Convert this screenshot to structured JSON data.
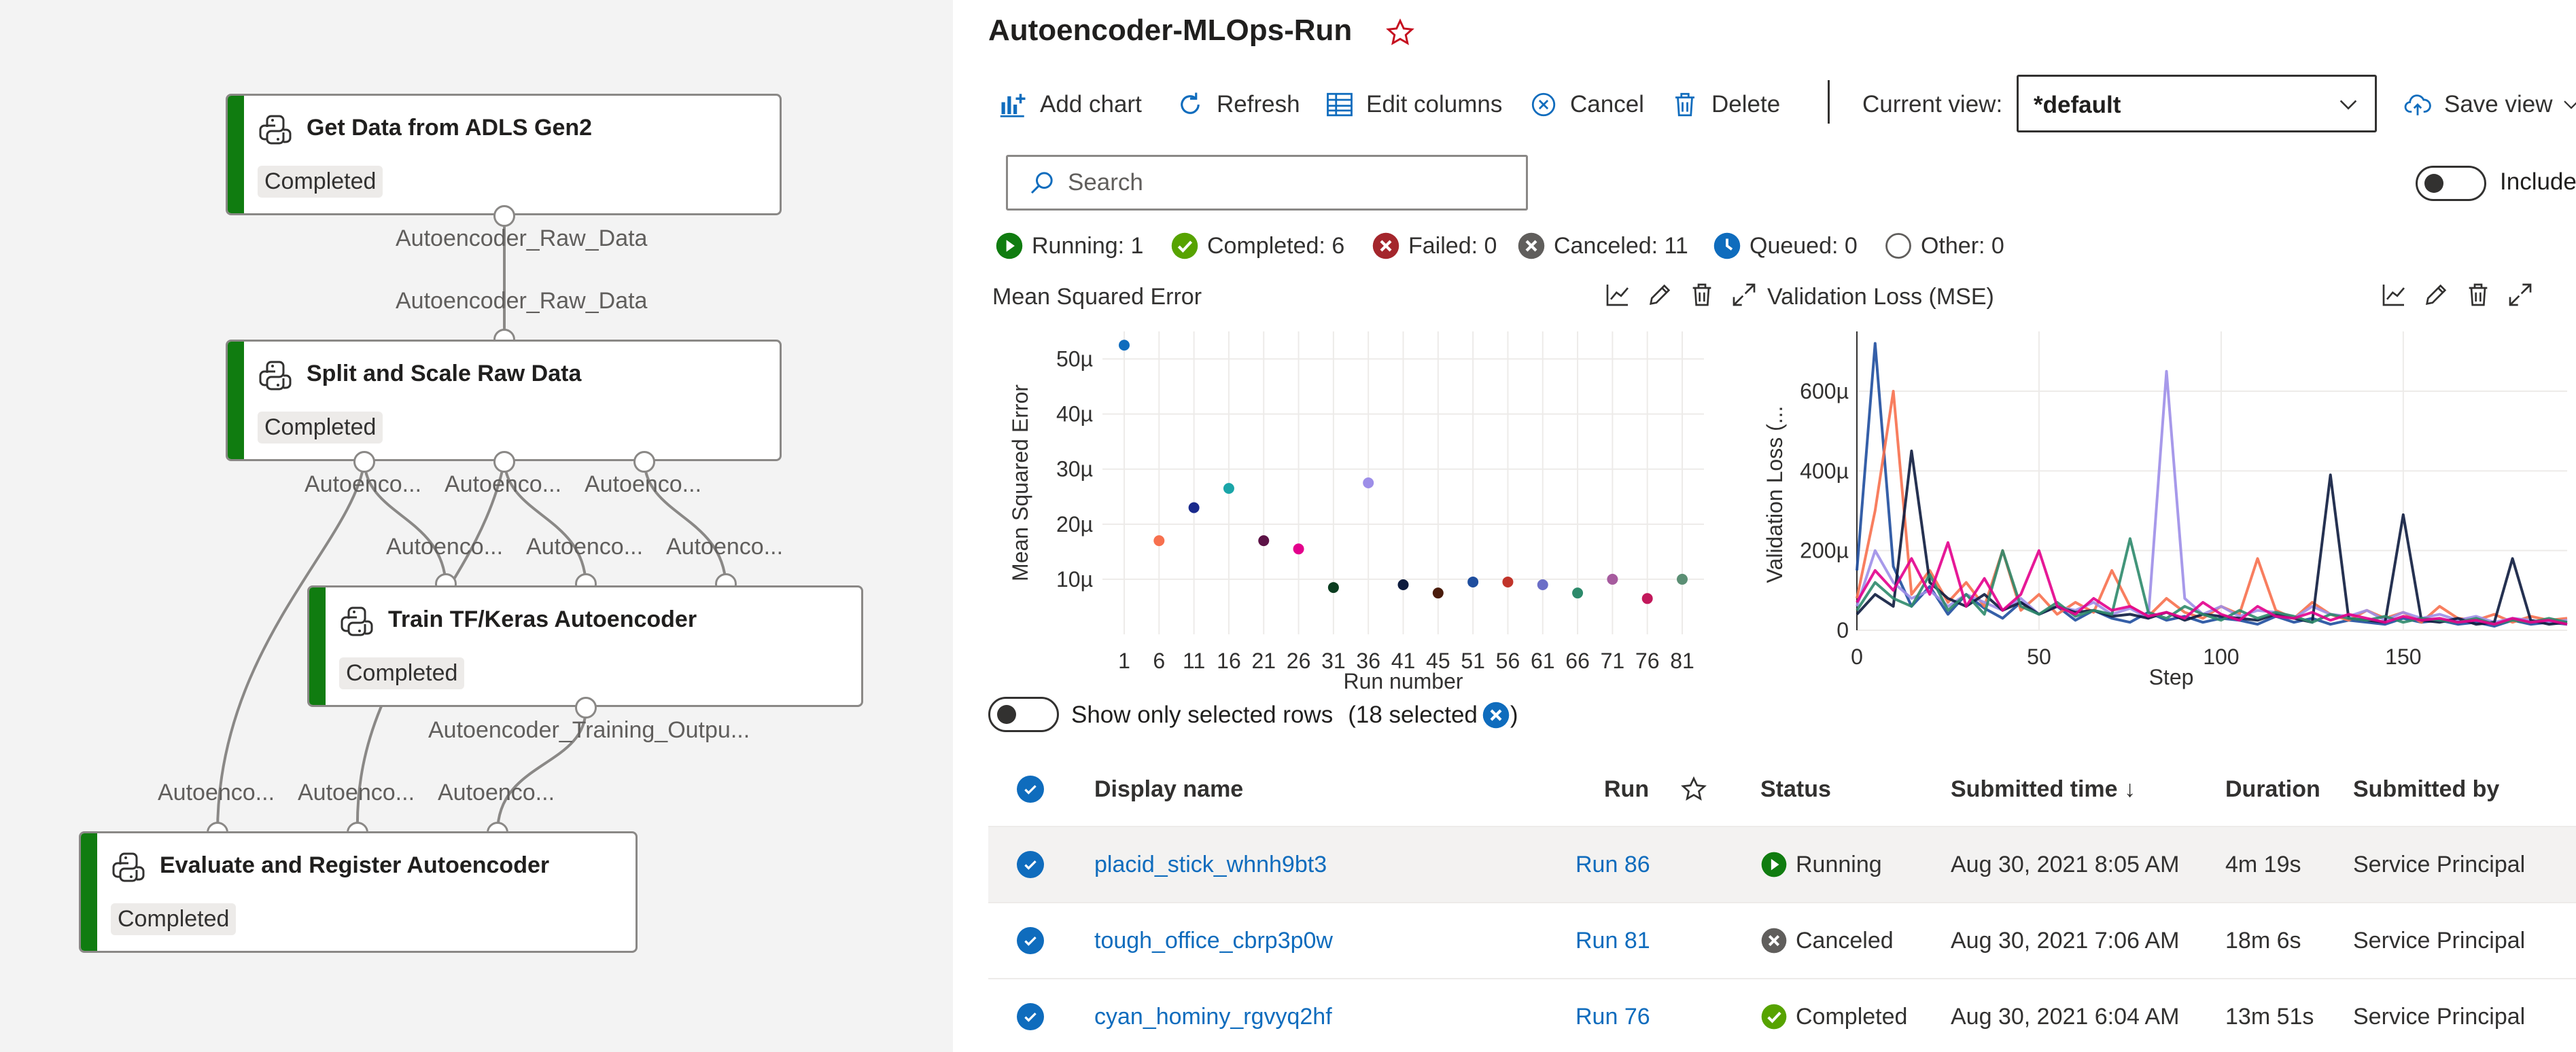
{
  "pipeline": {
    "nodes": [
      {
        "title": "Get Data from ADLS Gen2",
        "status": "Completed"
      },
      {
        "title": "Split and Scale Raw Data",
        "status": "Completed"
      },
      {
        "title": "Train TF/Keras Autoencoder",
        "status": "Completed"
      },
      {
        "title": "Evaluate and Register Autoencoder",
        "status": "Completed"
      }
    ],
    "port_labels": {
      "get_out": "Autoencoder_Raw_Data",
      "split_in": "Autoencoder_Raw_Data",
      "split_out_1": "Autoenco...",
      "split_out_2": "Autoenco...",
      "split_out_3": "Autoenco...",
      "train_in_1": "Autoenco...",
      "train_in_2": "Autoenco...",
      "train_in_3": "Autoenco...",
      "train_out": "Autoencoder_Training_Outpu...",
      "eval_in_1": "Autoenco...",
      "eval_in_2": "Autoenco...",
      "eval_in_3": "Autoenco..."
    },
    "status_color": "#107c10"
  },
  "header": {
    "title": "Autoencoder-MLOps-Run"
  },
  "toolbar": {
    "add_chart": "Add chart",
    "refresh": "Refresh",
    "edit_columns": "Edit columns",
    "cancel": "Cancel",
    "delete": "Delete",
    "current_view_label": "Current view:",
    "current_view_value": "*default",
    "save_view": "Save view",
    "include_label": "Include"
  },
  "search": {
    "placeholder": "Search"
  },
  "status_summary": [
    {
      "label": "Running: 1",
      "icon": "running-icon",
      "color": "#107c10"
    },
    {
      "label": "Completed: 6",
      "icon": "completed-icon",
      "color": "#57a300"
    },
    {
      "label": "Failed: 0",
      "icon": "failed-icon",
      "color": "#a4262c"
    },
    {
      "label": "Canceled: 11",
      "icon": "canceled-icon",
      "color": "#605e5c"
    },
    {
      "label": "Queued: 0",
      "icon": "queued-icon",
      "color": "#0f6cbd"
    },
    {
      "label": "Other: 0",
      "icon": "other-icon",
      "color": "#605e5c"
    }
  ],
  "chart_data": [
    {
      "type": "scatter",
      "title": "Mean Squared Error",
      "xlabel": "Run number",
      "ylabel": "Mean Squared Error",
      "x_ticks": [
        "1",
        "6",
        "11",
        "16",
        "21",
        "26",
        "31",
        "36",
        "41",
        "45",
        "51",
        "56",
        "61",
        "66",
        "71",
        "76",
        "81"
      ],
      "y_ticks": [
        "10µ",
        "20µ",
        "30µ",
        "40µ",
        "50µ"
      ],
      "ylim": [
        0,
        55
      ],
      "points": [
        {
          "x": "1",
          "y": 52.5,
          "color": "#0f6cbd"
        },
        {
          "x": "6",
          "y": 17,
          "color": "#f7704e"
        },
        {
          "x": "11",
          "y": 23,
          "color": "#1a2a8c"
        },
        {
          "x": "16",
          "y": 26.5,
          "color": "#1aa5a8"
        },
        {
          "x": "21",
          "y": 17,
          "color": "#5c1246"
        },
        {
          "x": "26",
          "y": 15.5,
          "color": "#e3008c"
        },
        {
          "x": "31",
          "y": 8.5,
          "color": "#0b3d20"
        },
        {
          "x": "36",
          "y": 27.5,
          "color": "#9d8ee8"
        },
        {
          "x": "41",
          "y": 9,
          "color": "#0d1b3e"
        },
        {
          "x": "45",
          "y": 7.5,
          "color": "#4a1c0c"
        },
        {
          "x": "51",
          "y": 9.5,
          "color": "#1f4e9e"
        },
        {
          "x": "56",
          "y": 9.5,
          "color": "#c1342a"
        },
        {
          "x": "61",
          "y": 9,
          "color": "#6b6ec7"
        },
        {
          "x": "66",
          "y": 7.5,
          "color": "#2d8a6b"
        },
        {
          "x": "71",
          "y": 10,
          "color": "#a65b9e"
        },
        {
          "x": "76",
          "y": 6.5,
          "color": "#c2185b"
        },
        {
          "x": "81",
          "y": 10,
          "color": "#5b8f74"
        }
      ]
    },
    {
      "type": "line",
      "title": "Validation Loss (MSE)",
      "xlabel": "Step",
      "ylabel": "Validation Loss (...",
      "x_ticks": [
        "0",
        "50",
        "100",
        "150"
      ],
      "y_ticks": [
        "0",
        "200µ",
        "400µ",
        "600µ"
      ],
      "xlim": [
        0,
        195
      ],
      "ylim": [
        0,
        750
      ],
      "series": [
        {
          "color": "#1f4e9e",
          "values": [
            150,
            720,
            160,
            60,
            110,
            40,
            90,
            55,
            30,
            70,
            40,
            60,
            25,
            50,
            30,
            20,
            45,
            25,
            35,
            20,
            30,
            25,
            15,
            35,
            20,
            30,
            15,
            25,
            20,
            15,
            30,
            20,
            25,
            15,
            20,
            10,
            25,
            15,
            20,
            15
          ]
        },
        {
          "color": "#f7704e",
          "values": [
            80,
            300,
            600,
            90,
            150,
            70,
            120,
            60,
            200,
            50,
            90,
            40,
            70,
            45,
            150,
            60,
            35,
            80,
            45,
            30,
            60,
            40,
            180,
            50,
            30,
            70,
            40,
            25,
            50,
            30,
            45,
            20,
            60,
            30,
            25,
            40,
            20,
            35,
            25,
            30
          ]
        },
        {
          "color": "#9d8ee8",
          "values": [
            60,
            200,
            120,
            80,
            100,
            60,
            90,
            70,
            50,
            80,
            40,
            60,
            50,
            70,
            40,
            55,
            30,
            650,
            80,
            40,
            60,
            35,
            50,
            45,
            30,
            60,
            40,
            35,
            50,
            25,
            45,
            30,
            40,
            25,
            35,
            20,
            30,
            25,
            20,
            25
          ]
        },
        {
          "color": "#0d1b3e",
          "values": [
            40,
            90,
            60,
            450,
            120,
            80,
            60,
            90,
            50,
            70,
            40,
            60,
            45,
            50,
            35,
            40,
            30,
            45,
            25,
            40,
            35,
            30,
            25,
            40,
            30,
            20,
            390,
            30,
            25,
            20,
            290,
            25,
            20,
            30,
            15,
            20,
            180,
            25,
            15,
            20
          ]
        },
        {
          "color": "#2d8a6b",
          "values": [
            50,
            120,
            80,
            60,
            140,
            50,
            90,
            40,
            200,
            60,
            40,
            70,
            35,
            50,
            40,
            230,
            45,
            30,
            60,
            40,
            25,
            50,
            30,
            45,
            35,
            20,
            40,
            30,
            25,
            35,
            20,
            30,
            25,
            20,
            30,
            15,
            25,
            20,
            30,
            20
          ]
        },
        {
          "color": "#e3008c",
          "values": [
            70,
            150,
            100,
            180,
            90,
            220,
            60,
            130,
            50,
            90,
            200,
            60,
            40,
            80,
            50,
            60,
            35,
            45,
            30,
            70,
            40,
            25,
            60,
            35,
            30,
            45,
            25,
            40,
            30,
            20,
            35,
            25,
            30,
            20,
            25,
            15,
            30,
            20,
            25,
            15
          ]
        }
      ]
    }
  ],
  "show_selected": {
    "label": "Show only selected rows",
    "count": "(18 selected",
    "close": ")"
  },
  "table": {
    "columns": {
      "display_name": "Display name",
      "run": "Run",
      "status": "Status",
      "submitted_time": "Submitted time ↓",
      "duration": "Duration",
      "submitted_by": "Submitted by"
    },
    "rows": [
      {
        "display_name": "placid_stick_whnh9bt3",
        "run": "Run 86",
        "status": "Running",
        "status_icon": "running-icon",
        "submitted_time": "Aug 30, 2021 8:05 AM",
        "duration": "4m 19s",
        "submitted_by": "Service Principal"
      },
      {
        "display_name": "tough_office_cbrp3p0w",
        "run": "Run 81",
        "status": "Canceled",
        "status_icon": "canceled-icon",
        "submitted_time": "Aug 30, 2021 7:06 AM",
        "duration": "18m 6s",
        "submitted_by": "Service Principal"
      },
      {
        "display_name": "cyan_hominy_rgvyq2hf",
        "run": "Run 76",
        "status": "Completed",
        "status_icon": "completed-icon",
        "submitted_time": "Aug 30, 2021 6:04 AM",
        "duration": "13m 51s",
        "submitted_by": "Service Principal"
      }
    ]
  },
  "accent_color": "#0f6cbd"
}
